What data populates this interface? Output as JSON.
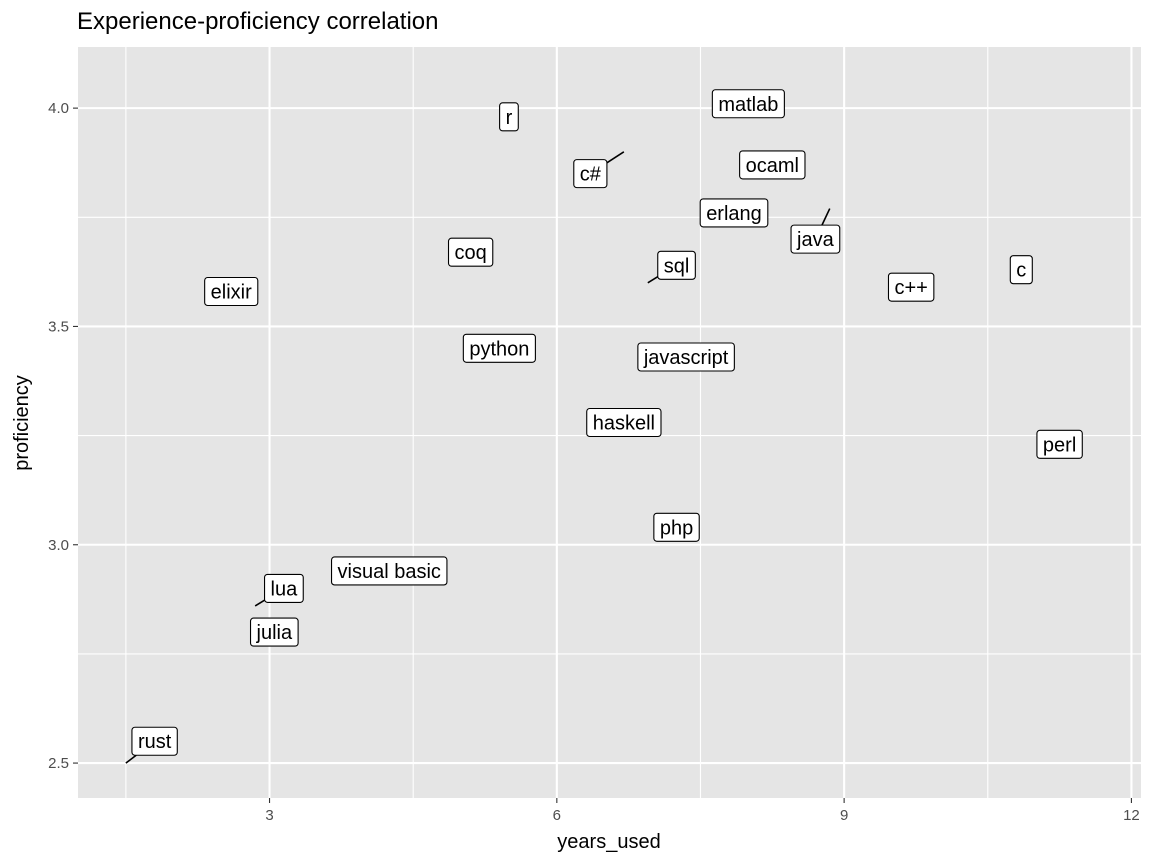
{
  "chart_data": {
    "type": "scatter",
    "title": "Experience-proficiency correlation",
    "xlabel": "years_used",
    "ylabel": "proficiency",
    "xlim": [
      1.0,
      12.1
    ],
    "ylim": [
      2.42,
      4.14
    ],
    "x_ticks": [
      3,
      6,
      9,
      12
    ],
    "x_tick_labels": [
      "3",
      "6",
      "9",
      "12"
    ],
    "x_minor_ticks": [
      1.5,
      4.5,
      7.5,
      10.5
    ],
    "y_ticks": [
      2.5,
      3.0,
      3.5,
      4.0
    ],
    "y_tick_labels": [
      "2.5",
      "3.0",
      "3.5",
      "4.0"
    ],
    "y_minor_ticks": [
      2.75,
      3.25,
      3.75
    ],
    "grid": true,
    "panel_background": "#e5e5e5",
    "grid_color": "#ffffff",
    "points": [
      {
        "name": "r",
        "x": 5.5,
        "y": 3.98,
        "label_x": 5.5,
        "label_y": 3.98
      },
      {
        "name": "matlab",
        "x": 8.0,
        "y": 4.01,
        "label_x": 8.0,
        "label_y": 4.01
      },
      {
        "name": "c#",
        "x": 6.7,
        "y": 3.9,
        "label_x": 6.35,
        "label_y": 3.85
      },
      {
        "name": "ocaml",
        "x": 8.25,
        "y": 3.87,
        "label_x": 8.25,
        "label_y": 3.87
      },
      {
        "name": "erlang",
        "x": 7.85,
        "y": 3.76,
        "label_x": 7.85,
        "label_y": 3.76
      },
      {
        "name": "java",
        "x": 8.85,
        "y": 3.77,
        "label_x": 8.7,
        "label_y": 3.7
      },
      {
        "name": "coq",
        "x": 5.1,
        "y": 3.67,
        "label_x": 5.1,
        "label_y": 3.67
      },
      {
        "name": "sql",
        "x": 6.95,
        "y": 3.6,
        "label_x": 7.25,
        "label_y": 3.64
      },
      {
        "name": "c",
        "x": 10.85,
        "y": 3.63,
        "label_x": 10.85,
        "label_y": 3.63
      },
      {
        "name": "elixir",
        "x": 2.6,
        "y": 3.58,
        "label_x": 2.6,
        "label_y": 3.58
      },
      {
        "name": "c++",
        "x": 9.7,
        "y": 3.59,
        "label_x": 9.7,
        "label_y": 3.59
      },
      {
        "name": "python",
        "x": 5.4,
        "y": 3.45,
        "label_x": 5.4,
        "label_y": 3.45
      },
      {
        "name": "javascript",
        "x": 7.35,
        "y": 3.43,
        "label_x": 7.35,
        "label_y": 3.43
      },
      {
        "name": "haskell",
        "x": 6.7,
        "y": 3.28,
        "label_x": 6.7,
        "label_y": 3.28
      },
      {
        "name": "perl",
        "x": 11.25,
        "y": 3.23,
        "label_x": 11.25,
        "label_y": 3.23
      },
      {
        "name": "php",
        "x": 7.25,
        "y": 3.04,
        "label_x": 7.25,
        "label_y": 3.04
      },
      {
        "name": "visual basic",
        "x": 4.25,
        "y": 2.94,
        "label_x": 4.25,
        "label_y": 2.94
      },
      {
        "name": "lua",
        "x": 2.85,
        "y": 2.86,
        "label_x": 3.15,
        "label_y": 2.9
      },
      {
        "name": "julia",
        "x": 3.05,
        "y": 2.8,
        "label_x": 3.05,
        "label_y": 2.8
      },
      {
        "name": "rust",
        "x": 1.5,
        "y": 2.5,
        "label_x": 1.8,
        "label_y": 2.55
      }
    ]
  }
}
